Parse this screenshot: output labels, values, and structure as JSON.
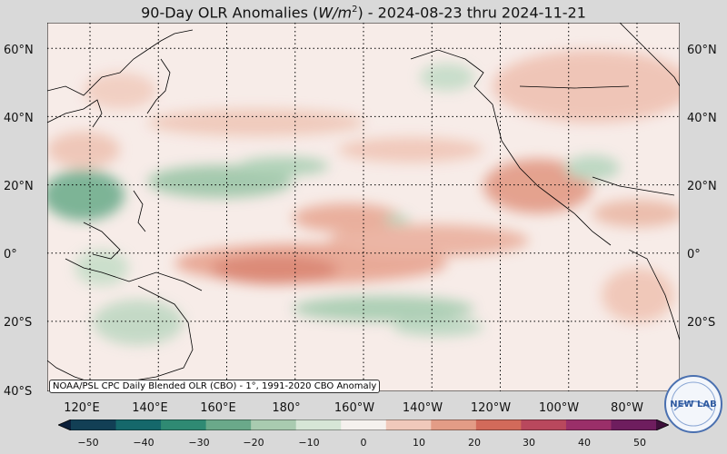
{
  "title": {
    "prefix": "90-Day OLR Anomalies (",
    "unit_base": "W/m",
    "unit_exp": "2",
    "suffix": ") - 2024-08-23 thru 2024-11-21"
  },
  "lat_labels": [
    "60°N",
    "40°N",
    "20°N",
    "0°",
    "20°S",
    "40°S"
  ],
  "lon_labels": [
    "120°E",
    "140°E",
    "160°E",
    "180°",
    "160°W",
    "140°W",
    "120°W",
    "100°W",
    "80°W"
  ],
  "attribution": "NOAA/PSL CPC Daily Blended OLR (CBO) - 1°, 1991-2020 CBO Anomaly",
  "colorbar": {
    "ticks": [
      "−50",
      "−40",
      "−30",
      "−20",
      "−10",
      "0",
      "10",
      "20",
      "30",
      "40",
      "50"
    ],
    "colors": [
      "#0b1f3a",
      "#123f55",
      "#15686b",
      "#2f8a73",
      "#6aa98a",
      "#a9cbb0",
      "#d6e6d6",
      "#f5f1ee",
      "#f0c9bb",
      "#e39c86",
      "#d26a5a",
      "#b9485d",
      "#9a2f69",
      "#6e1d5e",
      "#3d0f3a"
    ]
  },
  "logo_text": "NEW LAB",
  "grid": {
    "lat_lines": [
      60,
      40,
      20,
      0,
      -20
    ],
    "lon_lines": [
      120,
      140,
      160,
      180,
      200,
      220,
      240,
      260,
      280
    ]
  }
}
